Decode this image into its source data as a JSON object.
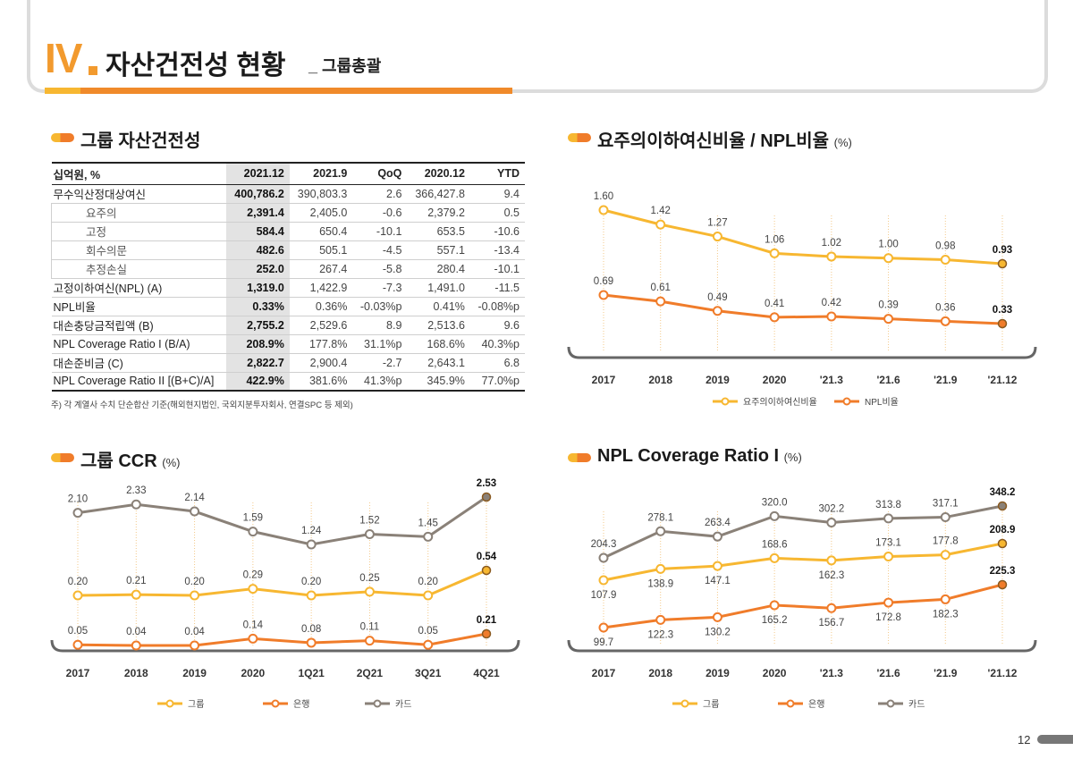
{
  "header": {
    "roman": "IV",
    "title": "자산건전성 현황",
    "subtitle": "_ 그룹총괄"
  },
  "page_number": "12",
  "colors": {
    "yellow": "#f7b731",
    "orange": "#f07c2a",
    "gray": "#8a8178",
    "accent": "#f29a2e"
  },
  "table_section": {
    "title": "그룹 자산건전성",
    "columns": [
      "십억원, %",
      "2021.12",
      "2021.9",
      "QoQ",
      "2020.12",
      "YTD"
    ],
    "rows": [
      {
        "label": "무수익산정대상여신",
        "values": [
          "400,786.2",
          "390,803.3",
          "2.6",
          "366,427.8",
          "9.4"
        ]
      },
      {
        "label": "요주의",
        "sub": true,
        "values": [
          "2,391.4",
          "2,405.0",
          "-0.6",
          "2,379.2",
          "0.5"
        ]
      },
      {
        "label": "고정",
        "sub": true,
        "values": [
          "584.4",
          "650.4",
          "-10.1",
          "653.5",
          "-10.6"
        ]
      },
      {
        "label": "회수의문",
        "sub": true,
        "values": [
          "482.6",
          "505.1",
          "-4.5",
          "557.1",
          "-13.4"
        ]
      },
      {
        "label": "추정손실",
        "sub": true,
        "values": [
          "252.0",
          "267.4",
          "-5.8",
          "280.4",
          "-10.1"
        ]
      },
      {
        "label": "고정이하여신(NPL) (A)",
        "values": [
          "1,319.0",
          "1,422.9",
          "-7.3",
          "1,491.0",
          "-11.5"
        ]
      },
      {
        "label": "NPL비율",
        "values": [
          "0.33%",
          "0.36%",
          "-0.03%p",
          "0.41%",
          "-0.08%p"
        ]
      },
      {
        "label": "대손충당금적립액 (B)",
        "values": [
          "2,755.2",
          "2,529.6",
          "8.9",
          "2,513.6",
          "9.6"
        ]
      },
      {
        "label": "NPL Coverage Ratio I (B/A)",
        "values": [
          "208.9%",
          "177.8%",
          "31.1%p",
          "168.6%",
          "40.3%p"
        ]
      },
      {
        "label": "대손준비금 (C)",
        "values": [
          "2,822.7",
          "2,900.4",
          "-2.7",
          "2,643.1",
          "6.8"
        ]
      },
      {
        "label": "NPL Coverage  Ratio II [(B+C)/A]",
        "values": [
          "422.9%",
          "381.6%",
          "41.3%p",
          "345.9%",
          "77.0%p"
        ]
      }
    ],
    "note": "주) 각 계열사 수치 단순합산 기준(해외현지법인, 국외지분투자회사, 연결SPC 등 제외)"
  },
  "chart_data": [
    {
      "type": "line",
      "title": "요주의이하여신비율 / NPL비율",
      "unit": "(%)",
      "categories": [
        "2017",
        "2018",
        "2019",
        "2020",
        "'21.3",
        "'21.6",
        "'21.9",
        "'21.12"
      ],
      "series": [
        {
          "name": "요주의이하여신비율",
          "color": "#f7b731",
          "values": [
            1.6,
            1.42,
            1.27,
            1.06,
            1.02,
            1.0,
            0.98,
            0.93
          ],
          "labels": [
            "1.60",
            "1.42",
            "1.27",
            "1.06",
            "1.02",
            "1.00",
            "0.98",
            "0.93"
          ]
        },
        {
          "name": "NPL비율",
          "color": "#f07c2a",
          "values": [
            0.69,
            0.61,
            0.49,
            0.41,
            0.42,
            0.39,
            0.36,
            0.33
          ],
          "labels": [
            "0.69",
            "0.61",
            "0.49",
            "0.41",
            "0.42",
            "0.39",
            "0.36",
            "0.33"
          ]
        }
      ],
      "legend": "bottom"
    },
    {
      "type": "line",
      "title": "그룹 CCR",
      "unit": "(%)",
      "categories": [
        "2017",
        "2018",
        "2019",
        "2020",
        "1Q21",
        "2Q21",
        "3Q21",
        "4Q21"
      ],
      "series": [
        {
          "name": "그룹",
          "color": "#f7b731",
          "values": [
            0.2,
            0.21,
            0.2,
            0.29,
            0.2,
            0.25,
            0.2,
            0.54
          ],
          "labels": [
            "0.20",
            "0.21",
            "0.20",
            "0.29",
            "0.20",
            "0.25",
            "0.20",
            "0.54"
          ]
        },
        {
          "name": "은행",
          "color": "#f07c2a",
          "values": [
            0.05,
            0.04,
            0.04,
            0.14,
            0.08,
            0.11,
            0.05,
            0.21
          ],
          "labels": [
            "0.05",
            "0.04",
            "0.04",
            "0.14",
            "0.08",
            "0.11",
            "0.05",
            "0.21"
          ]
        },
        {
          "name": "카드",
          "color": "#8a8178",
          "values": [
            2.1,
            2.33,
            2.14,
            1.59,
            1.24,
            1.52,
            1.45,
            2.53
          ],
          "labels": [
            "2.10",
            "2.33",
            "2.14",
            "1.59",
            "1.24",
            "1.52",
            "1.45",
            "2.53"
          ]
        }
      ],
      "legend": "bottom"
    },
    {
      "type": "line",
      "title": "NPL Coverage Ratio I",
      "unit": "(%)",
      "categories": [
        "2017",
        "2018",
        "2019",
        "2020",
        "'21.3",
        "'21.6",
        "'21.9",
        "'21.12"
      ],
      "series": [
        {
          "name": "그룹",
          "color": "#f7b731",
          "values": [
            107.9,
            138.9,
            147.1,
            168.6,
            162.3,
            173.1,
            177.8,
            208.9
          ],
          "labels": [
            "107.9",
            "138.9",
            "147.1",
            "168.6",
            "162.3",
            "173.1",
            "177.8",
            "208.9"
          ]
        },
        {
          "name": "은행",
          "color": "#f07c2a",
          "values": [
            99.7,
            122.3,
            130.2,
            165.2,
            156.7,
            172.8,
            182.3,
            225.3
          ],
          "labels": [
            "99.7",
            "122.3",
            "130.2",
            "165.2",
            "156.7",
            "172.8",
            "182.3",
            "225.3"
          ]
        },
        {
          "name": "카드",
          "color": "#8a8178",
          "values": [
            204.3,
            278.1,
            263.4,
            320.0,
            302.2,
            313.8,
            317.1,
            348.2
          ],
          "labels": [
            "204.3",
            "278.1",
            "263.4",
            "320.0",
            "302.2",
            "313.8",
            "317.1",
            "348.2"
          ]
        }
      ],
      "legend": "bottom"
    }
  ]
}
